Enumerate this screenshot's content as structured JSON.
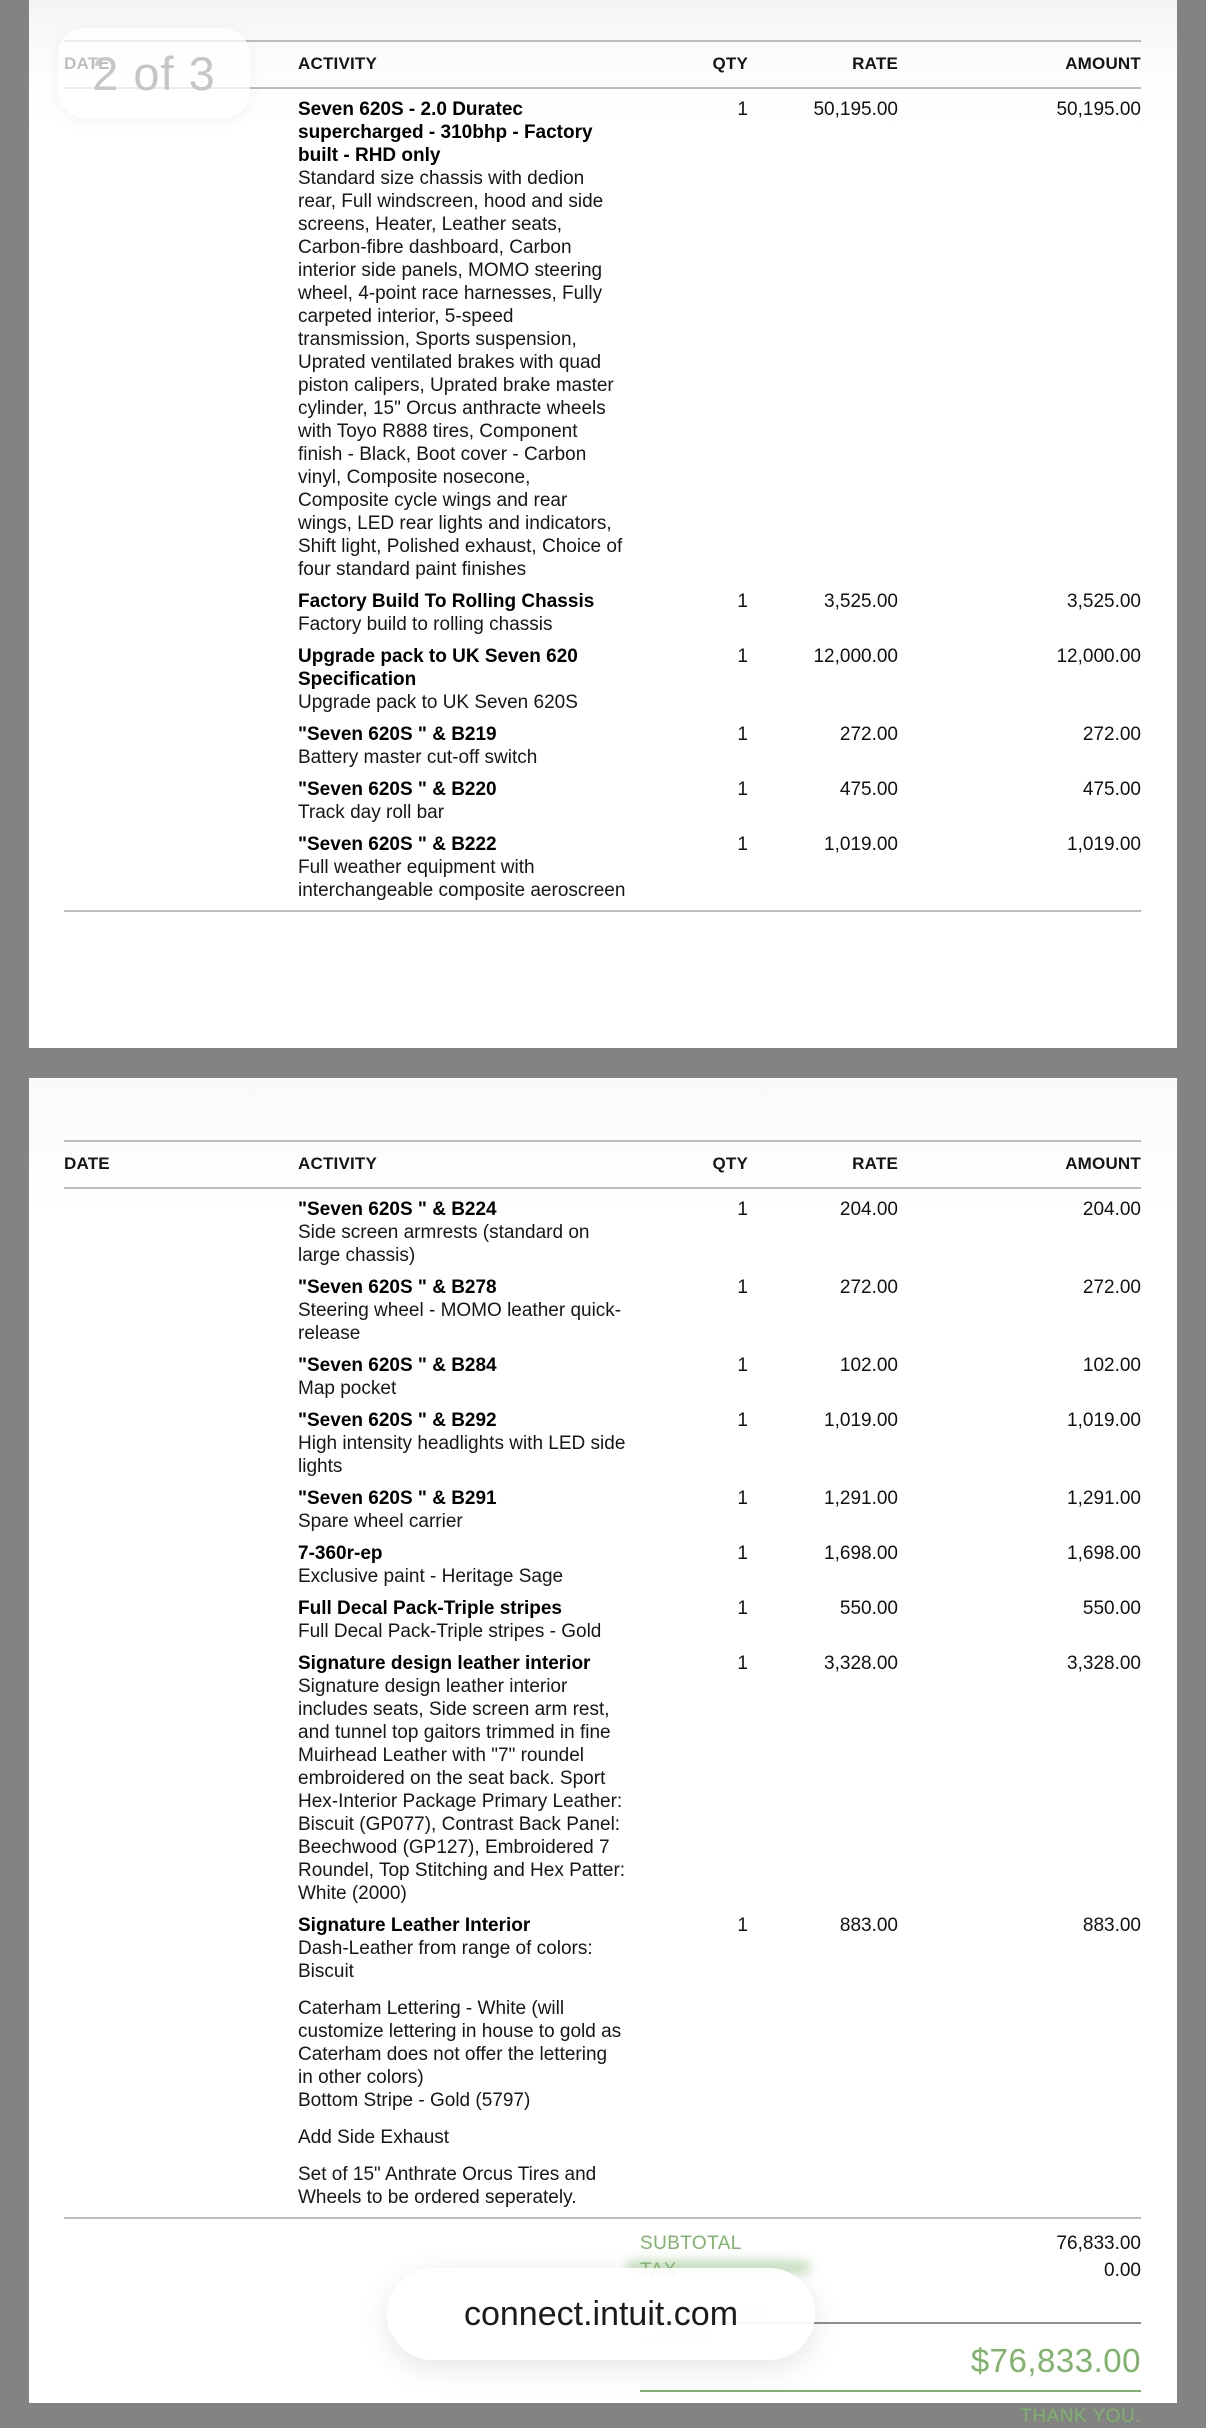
{
  "overlay": {
    "page_indicator": "2 of 3",
    "url_pill": "connect.intuit.com"
  },
  "colors": {
    "accent_green": "#7db469",
    "surround_gray": "#838383",
    "page_white": "#ffffff"
  },
  "table": {
    "columns": {
      "date": "DATE",
      "activity": "ACTIVITY",
      "qty": "QTY",
      "rate": "RATE",
      "amount": "AMOUNT"
    }
  },
  "page1": {
    "items": [
      {
        "title": "Seven 620S - 2.0 Duratec supercharged - 310bhp - Factory built - RHD only",
        "description": "Standard size chassis with dedion rear, Full windscreen, hood and side screens, Heater, Leather seats, Carbon-fibre dashboard, Carbon interior side panels, MOMO steering wheel, 4-point race harnesses, Fully carpeted interior, 5-speed transmission, Sports suspension, Uprated ventilated brakes with quad piston calipers, Uprated brake master cylinder, 15\" Orcus anthracte wheels with Toyo R888 tires, Component finish - Black, Boot cover - Carbon vinyl, Composite nosecone, Composite cycle wings and rear wings, LED rear lights and indicators, Shift light, Polished exhaust, Choice of four standard paint finishes",
        "qty": "1",
        "rate": "50,195.00",
        "amount": "50,195.00"
      },
      {
        "title": "Factory Build To Rolling Chassis",
        "description": "Factory build to rolling chassis",
        "qty": "1",
        "rate": "3,525.00",
        "amount": "3,525.00"
      },
      {
        "title": "Upgrade pack to UK Seven 620 Specification",
        "description": "Upgrade pack to UK Seven 620S",
        "qty": "1",
        "rate": "12,000.00",
        "amount": "12,000.00"
      },
      {
        "title": "\"Seven 620S \" & B219",
        "description": "Battery master cut-off switch",
        "qty": "1",
        "rate": "272.00",
        "amount": "272.00"
      },
      {
        "title": "\"Seven 620S \" & B220",
        "description": "Track day roll bar",
        "qty": "1",
        "rate": "475.00",
        "amount": "475.00"
      },
      {
        "title": "\"Seven 620S \" & B222",
        "description": "Full weather equipment with interchangeable composite aeroscreen",
        "qty": "1",
        "rate": "1,019.00",
        "amount": "1,019.00"
      }
    ]
  },
  "page2": {
    "items": [
      {
        "title": "\"Seven 620S \" & B224",
        "description": "Side screen armrests (standard on large chassis)",
        "qty": "1",
        "rate": "204.00",
        "amount": "204.00"
      },
      {
        "title": "\"Seven 620S \" & B278",
        "description": "Steering wheel - MOMO leather quick-release",
        "qty": "1",
        "rate": "272.00",
        "amount": "272.00"
      },
      {
        "title": "\"Seven 620S \" & B284",
        "description": "Map pocket",
        "qty": "1",
        "rate": "102.00",
        "amount": "102.00"
      },
      {
        "title": "\"Seven 620S \" & B292",
        "description": "High intensity headlights with LED side lights",
        "qty": "1",
        "rate": "1,019.00",
        "amount": "1,019.00"
      },
      {
        "title": "\"Seven 620S \" & B291",
        "description": "Spare wheel carrier",
        "qty": "1",
        "rate": "1,291.00",
        "amount": "1,291.00"
      },
      {
        "title": "7-360r-ep",
        "description": "Exclusive paint - Heritage Sage",
        "qty": "1",
        "rate": "1,698.00",
        "amount": "1,698.00"
      },
      {
        "title": "Full Decal Pack-Triple stripes",
        "description": "Full Decal Pack-Triple stripes - Gold",
        "qty": "1",
        "rate": "550.00",
        "amount": "550.00"
      },
      {
        "title": "Signature design leather interior",
        "description": "Signature design leather interior includes seats, Side screen arm rest, and tunnel top gaitors trimmed in fine Muirhead Leather with \"7\" roundel embroidered on the seat back. Sport Hex-Interior Package Primary Leather: Biscuit (GP077), Contrast Back Panel: Beechwood (GP127), Embroidered 7 Roundel, Top Stitching and Hex Patter: White (2000)",
        "qty": "1",
        "rate": "3,328.00",
        "amount": "3,328.00"
      },
      {
        "title": "Signature Leather Interior",
        "description": "Dash-Leather from range of colors: Biscuit",
        "qty": "1",
        "rate": "883.00",
        "amount": "883.00"
      }
    ],
    "notes": [
      "Caterham Lettering - White (will customize lettering in house to gold as Caterham does not offer the lettering in other colors)\nBottom Stripe - Gold (5797)",
      "Add Side Exhaust",
      "Set of 15\" Anthrate Orcus Tires and Wheels to be ordered seperately."
    ],
    "totals": {
      "subtotal_label": "SUBTOTAL",
      "subtotal_value": "76,833.00",
      "tax_label": "TAX",
      "tax_value": "0.00",
      "total_value": "$76,833.00",
      "thank_you": "THANK YOU."
    }
  }
}
